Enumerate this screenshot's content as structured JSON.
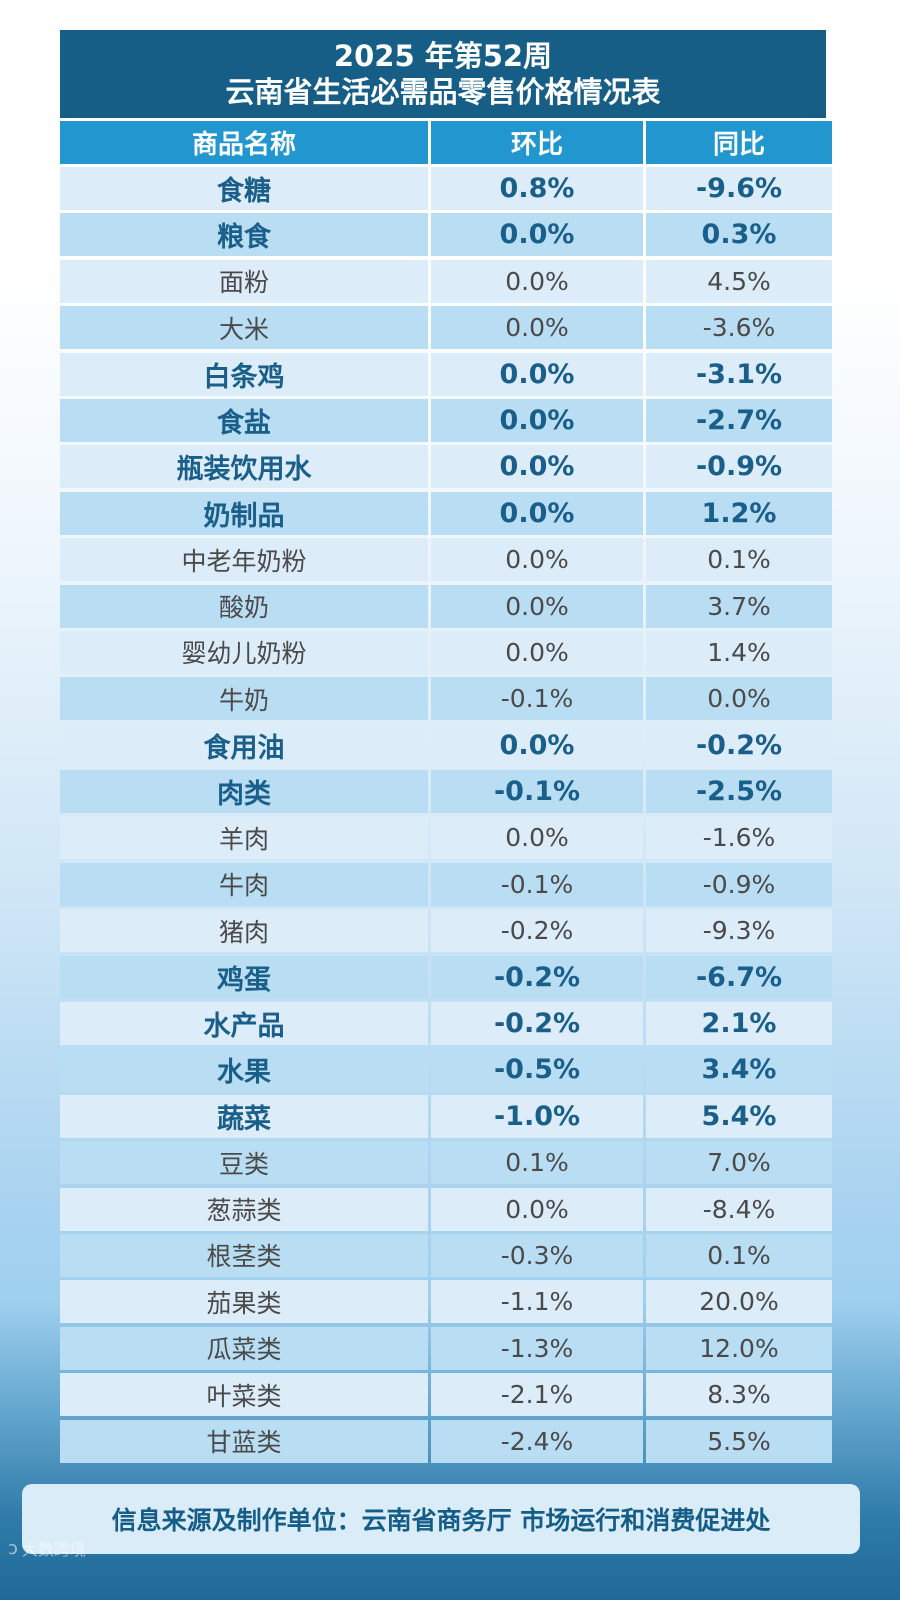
{
  "title": {
    "line1": "2025 年第52周",
    "line2": "云南省生活必需品零售价格情况表"
  },
  "columns": [
    "商品名称",
    "环比",
    "同比"
  ],
  "rows": [
    {
      "name": "食糖",
      "mom": "0.8%",
      "yoy": "-9.6%",
      "kind": "cat"
    },
    {
      "name": "粮食",
      "mom": "0.0%",
      "yoy": "0.3%",
      "kind": "cat"
    },
    {
      "name": "面粉",
      "mom": "0.0%",
      "yoy": "4.5%",
      "kind": "sub"
    },
    {
      "name": "大米",
      "mom": "0.0%",
      "yoy": "-3.6%",
      "kind": "sub"
    },
    {
      "name": "白条鸡",
      "mom": "0.0%",
      "yoy": "-3.1%",
      "kind": "cat"
    },
    {
      "name": "食盐",
      "mom": "0.0%",
      "yoy": "-2.7%",
      "kind": "cat"
    },
    {
      "name": "瓶装饮用水",
      "mom": "0.0%",
      "yoy": "-0.9%",
      "kind": "cat"
    },
    {
      "name": "奶制品",
      "mom": "0.0%",
      "yoy": "1.2%",
      "kind": "cat"
    },
    {
      "name": "中老年奶粉",
      "mom": "0.0%",
      "yoy": "0.1%",
      "kind": "sub"
    },
    {
      "name": "酸奶",
      "mom": "0.0%",
      "yoy": "3.7%",
      "kind": "sub"
    },
    {
      "name": "婴幼儿奶粉",
      "mom": "0.0%",
      "yoy": "1.4%",
      "kind": "sub"
    },
    {
      "name": "牛奶",
      "mom": "-0.1%",
      "yoy": "0.0%",
      "kind": "sub"
    },
    {
      "name": "食用油",
      "mom": "0.0%",
      "yoy": "-0.2%",
      "kind": "cat"
    },
    {
      "name": "肉类",
      "mom": "-0.1%",
      "yoy": "-2.5%",
      "kind": "cat"
    },
    {
      "name": "羊肉",
      "mom": "0.0%",
      "yoy": "-1.6%",
      "kind": "sub"
    },
    {
      "name": "牛肉",
      "mom": "-0.1%",
      "yoy": "-0.9%",
      "kind": "sub"
    },
    {
      "name": "猪肉",
      "mom": "-0.2%",
      "yoy": "-9.3%",
      "kind": "sub"
    },
    {
      "name": "鸡蛋",
      "mom": "-0.2%",
      "yoy": "-6.7%",
      "kind": "cat"
    },
    {
      "name": "水产品",
      "mom": "-0.2%",
      "yoy": "2.1%",
      "kind": "cat"
    },
    {
      "name": "水果",
      "mom": "-0.5%",
      "yoy": "3.4%",
      "kind": "cat"
    },
    {
      "name": "蔬菜",
      "mom": "-1.0%",
      "yoy": "5.4%",
      "kind": "cat"
    },
    {
      "name": "豆类",
      "mom": "0.1%",
      "yoy": "7.0%",
      "kind": "sub"
    },
    {
      "name": "葱蒜类",
      "mom": "0.0%",
      "yoy": "-8.4%",
      "kind": "sub"
    },
    {
      "name": "根茎类",
      "mom": "-0.3%",
      "yoy": "0.1%",
      "kind": "sub"
    },
    {
      "name": "茄果类",
      "mom": "-1.1%",
      "yoy": "20.0%",
      "kind": "sub"
    },
    {
      "name": "瓜菜类",
      "mom": "-1.3%",
      "yoy": "12.0%",
      "kind": "sub"
    },
    {
      "name": "叶菜类",
      "mom": "-2.1%",
      "yoy": "8.3%",
      "kind": "sub"
    },
    {
      "name": "甘蓝类",
      "mom": "-2.4%",
      "yoy": "5.5%",
      "kind": "sub"
    }
  ],
  "footer": "信息来源及制作单位：云南省商务厅 市场运行和消费促进处",
  "watermark": {
    "text": "大数跨境",
    "icon": "watermark-logo-icon"
  },
  "colors": {
    "title_bg": "#165e86",
    "header_bg": "#2196cf",
    "category_text": "#1a5f8a",
    "sub_text": "#4a4a4a"
  }
}
